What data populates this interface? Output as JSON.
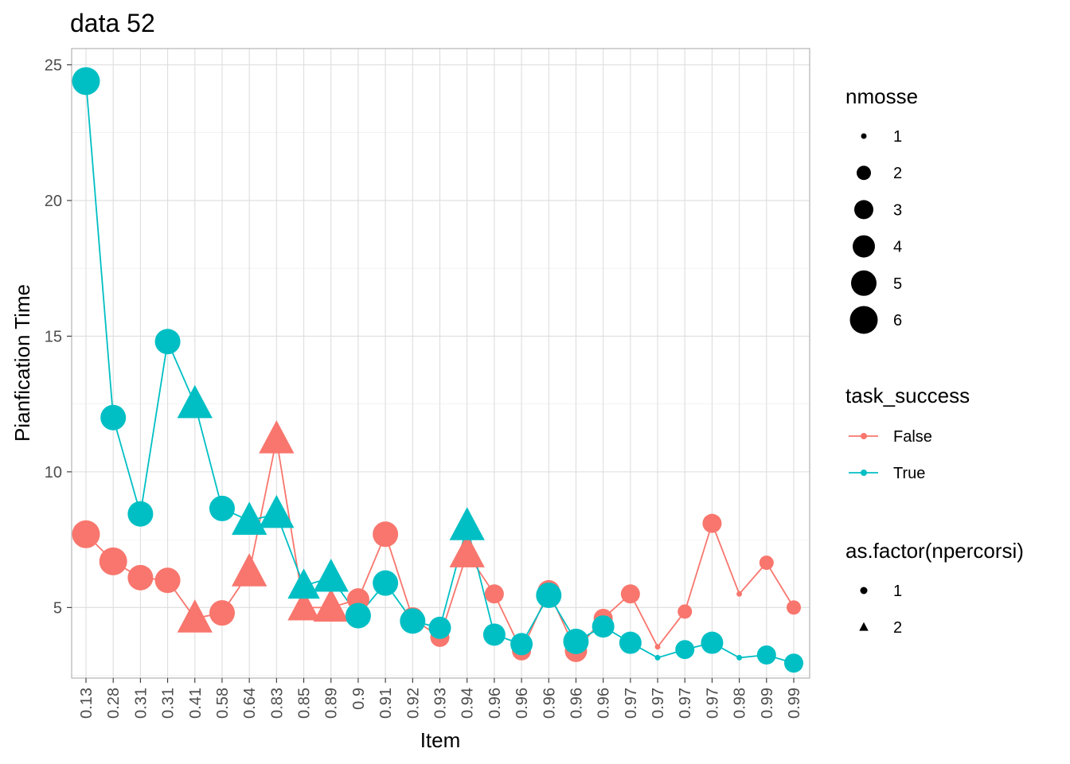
{
  "chart_data": {
    "type": "line",
    "title": "data 52",
    "xlabel": "Item",
    "ylabel": "Pianfication Time",
    "categories": [
      "0.13",
      "0.28",
      "0.31",
      "0.31",
      "0.41",
      "0.58",
      "0.64",
      "0.83",
      "0.85",
      "0.89",
      "0.9",
      "0.91",
      "0.92",
      "0.93",
      "0.94",
      "0.96",
      "0.96",
      "0.96",
      "0.96",
      "0.96",
      "0.97",
      "0.97",
      "0.97",
      "0.97",
      "0.98",
      "0.99",
      "0.99"
    ],
    "ylim": [
      2.4,
      25.6
    ],
    "yticks": [
      5,
      10,
      15,
      20,
      25
    ],
    "grid": true,
    "legend_position": "right",
    "series": [
      {
        "name": "False",
        "color": "#F8766D",
        "values": [
          7.7,
          6.7,
          6.1,
          6.0,
          4.6,
          4.8,
          6.3,
          11.2,
          5.0,
          5.0,
          5.3,
          7.7,
          4.6,
          3.9,
          7.0,
          5.5,
          3.4,
          5.6,
          3.4,
          4.6,
          5.5,
          3.55,
          4.85,
          8.1,
          5.5,
          6.65,
          5.0
        ],
        "nmosse": [
          6,
          6,
          5,
          5,
          6,
          5,
          6,
          6,
          5,
          6,
          4,
          5,
          4,
          3,
          6,
          3,
          3,
          4,
          4,
          3,
          3,
          1,
          2,
          3,
          1,
          2,
          2
        ],
        "npercorsi": [
          1,
          1,
          1,
          1,
          2,
          1,
          2,
          2,
          2,
          2,
          1,
          1,
          1,
          1,
          2,
          1,
          1,
          1,
          1,
          1,
          1,
          1,
          1,
          1,
          1,
          1,
          1
        ]
      },
      {
        "name": "True",
        "color": "#00BFC4",
        "values": [
          24.4,
          12.0,
          8.45,
          14.8,
          12.5,
          8.65,
          8.2,
          8.45,
          5.8,
          6.1,
          4.7,
          5.9,
          4.5,
          4.25,
          8.0,
          4.0,
          3.65,
          5.45,
          3.75,
          4.3,
          3.7,
          3.15,
          3.45,
          3.7,
          3.15,
          3.25,
          2.95
        ],
        "nmosse": [
          6,
          5,
          5,
          5,
          6,
          5,
          6,
          6,
          5,
          6,
          5,
          5,
          5,
          4,
          6,
          4,
          4,
          5,
          5,
          4,
          4,
          1,
          3,
          4,
          1,
          3,
          3
        ],
        "npercorsi": [
          1,
          1,
          1,
          1,
          2,
          1,
          2,
          2,
          2,
          2,
          1,
          1,
          1,
          1,
          2,
          1,
          1,
          1,
          1,
          1,
          1,
          1,
          1,
          1,
          1,
          1,
          1
        ]
      }
    ],
    "legends": {
      "size": {
        "title": "nmosse",
        "levels": [
          "1",
          "2",
          "3",
          "4",
          "5",
          "6"
        ]
      },
      "color": {
        "title": "task_success",
        "levels": [
          "False",
          "True"
        ]
      },
      "shape": {
        "title": "as.factor(npercorsi)",
        "levels": [
          "1",
          "2"
        ],
        "shapes": [
          "circle",
          "triangle"
        ]
      }
    }
  }
}
